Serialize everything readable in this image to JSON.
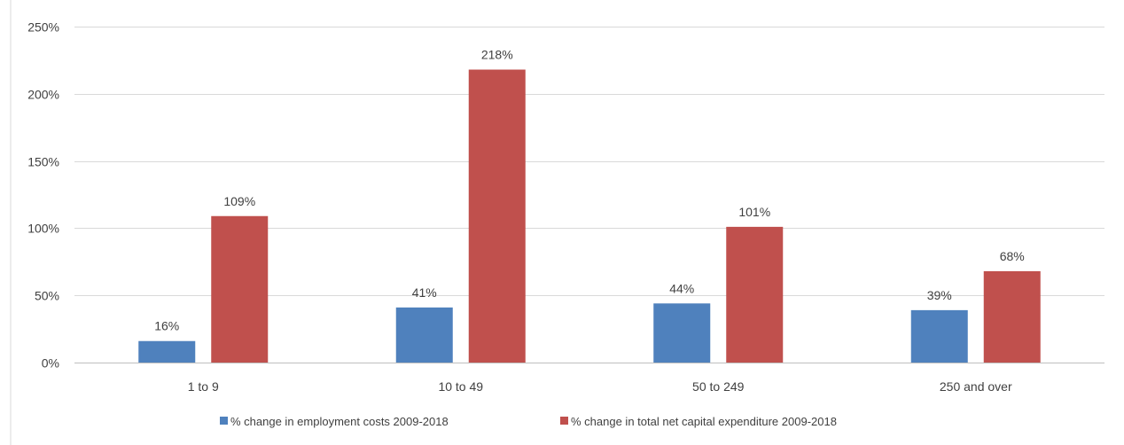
{
  "chart_data": {
    "type": "bar",
    "categories": [
      "1 to 9",
      "10 to 49",
      "50 to 249",
      "250 and over"
    ],
    "series": [
      {
        "name": "% change in employment costs 2009-2018",
        "values": [
          16,
          41,
          44,
          39
        ],
        "labels": [
          "16%",
          "41%",
          "44%",
          "39%"
        ],
        "color": "#4f81bd"
      },
      {
        "name": "% change in total net capital expenditure 2009-2018",
        "values": [
          109,
          218,
          101,
          68
        ],
        "labels": [
          "109%",
          "218%",
          "101%",
          "68%"
        ],
        "color": "#c0504d"
      }
    ],
    "ylim": [
      0,
      250
    ],
    "yticks": [
      0,
      50,
      100,
      150,
      200,
      250
    ],
    "ytick_labels": [
      "0%",
      "50%",
      "100%",
      "150%",
      "200%",
      "250%"
    ],
    "grid": true,
    "legend_position": "bottom",
    "title": "",
    "xlabel": "",
    "ylabel": ""
  }
}
